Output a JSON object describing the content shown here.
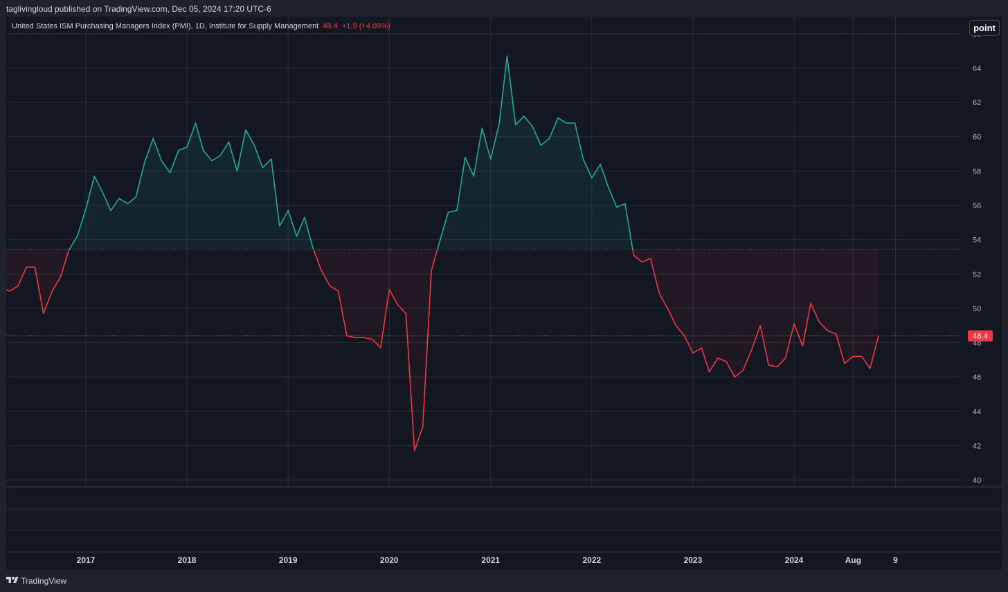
{
  "header": {
    "published_text": "taglivingloud published on TradingView.com, Dec 05, 2024 17:20 UTC-6"
  },
  "legend": {
    "symbol_text": "United States ISM Purchasing Managers Index (PMI), 1D, Institute for Supply Management",
    "last_value": "48.4",
    "change_text": "+1.9 (+4.09%)"
  },
  "toolbar": {
    "point_label": "point"
  },
  "footer": {
    "brand": "TradingView",
    "logo_icon": "tradingview-logo-icon"
  },
  "colors": {
    "background": "#131722",
    "frame": "#1e222d",
    "above_line": "#22ab94",
    "below_line": "#f23645",
    "grid": "#2a2e39",
    "axis_text": "#b2b5be"
  },
  "chart_data": {
    "type": "line",
    "style": "baseline",
    "title": "United States ISM Purchasing Managers Index (PMI)",
    "baseline_value": 53.45,
    "last_value_label": "48.4",
    "ylim": [
      39.6,
      67
    ],
    "y_ticks": [
      "40",
      "42",
      "44",
      "46",
      "48",
      "50",
      "52",
      "54",
      "56",
      "58",
      "60",
      "62",
      "64",
      "66"
    ],
    "x_ticks": [
      "2017",
      "2018",
      "2019",
      "2020",
      "2021",
      "2022",
      "2023",
      "2024",
      "Aug",
      "9"
    ],
    "x_tick_dates": [
      "2017-01-01",
      "2018-01-01",
      "2019-01-01",
      "2020-01-01",
      "2021-01-01",
      "2022-01-01",
      "2023-01-01",
      "2024-01-01",
      "2024-08-01",
      "2025-01-01"
    ],
    "grid": true,
    "x": [
      "2016-03",
      "2016-04",
      "2016-05",
      "2016-06",
      "2016-07",
      "2016-08",
      "2016-09",
      "2016-10",
      "2016-11",
      "2016-12",
      "2017-01",
      "2017-02",
      "2017-03",
      "2017-04",
      "2017-05",
      "2017-06",
      "2017-07",
      "2017-08",
      "2017-09",
      "2017-10",
      "2017-11",
      "2017-12",
      "2018-01",
      "2018-02",
      "2018-03",
      "2018-04",
      "2018-05",
      "2018-06",
      "2018-07",
      "2018-08",
      "2018-09",
      "2018-10",
      "2018-11",
      "2018-12",
      "2019-01",
      "2019-02",
      "2019-03",
      "2019-04",
      "2019-05",
      "2019-06",
      "2019-07",
      "2019-08",
      "2019-09",
      "2019-10",
      "2019-11",
      "2019-12",
      "2020-01",
      "2020-02",
      "2020-03",
      "2020-04",
      "2020-05",
      "2020-06",
      "2020-07",
      "2020-08",
      "2020-09",
      "2020-10",
      "2020-11",
      "2020-12",
      "2021-01",
      "2021-02",
      "2021-03",
      "2021-04",
      "2021-05",
      "2021-06",
      "2021-07",
      "2021-08",
      "2021-09",
      "2021-10",
      "2021-11",
      "2021-12",
      "2022-01",
      "2022-02",
      "2022-03",
      "2022-04",
      "2022-05",
      "2022-06",
      "2022-07",
      "2022-08",
      "2022-09",
      "2022-10",
      "2022-11",
      "2022-12",
      "2023-01",
      "2023-02",
      "2023-03",
      "2023-04",
      "2023-05",
      "2023-06",
      "2023-07",
      "2023-08",
      "2023-09",
      "2023-10",
      "2023-11",
      "2023-12",
      "2024-01",
      "2024-02",
      "2024-03",
      "2024-04",
      "2024-05",
      "2024-06",
      "2024-07",
      "2024-08",
      "2024-09",
      "2024-10",
      "2024-11"
    ],
    "values": [
      51.2,
      51.0,
      51.3,
      52.4,
      52.4,
      49.7,
      51.0,
      51.8,
      53.4,
      54.2,
      55.8,
      57.7,
      56.8,
      55.7,
      56.4,
      56.1,
      56.5,
      58.5,
      59.9,
      58.6,
      57.9,
      59.2,
      59.4,
      60.8,
      59.2,
      58.6,
      58.9,
      59.7,
      58.0,
      60.4,
      59.5,
      58.2,
      58.7,
      54.8,
      55.7,
      54.2,
      55.3,
      53.5,
      52.2,
      51.3,
      51.0,
      48.4,
      48.3,
      48.3,
      48.2,
      47.7,
      51.1,
      50.2,
      49.7,
      41.7,
      43.1,
      52.2,
      53.9,
      55.6,
      55.7,
      58.8,
      57.7,
      60.5,
      58.7,
      60.8,
      64.7,
      60.7,
      61.2,
      60.6,
      59.5,
      59.9,
      61.1,
      60.8,
      60.8,
      58.7,
      57.6,
      58.4,
      57.1,
      55.9,
      56.1,
      53.1,
      52.7,
      52.9,
      50.9,
      50.0,
      49.0,
      48.4,
      47.4,
      47.7,
      46.3,
      47.1,
      46.9,
      46.0,
      46.4,
      47.6,
      49.0,
      46.7,
      46.6,
      47.1,
      49.1,
      47.8,
      50.3,
      49.2,
      48.7,
      48.5,
      46.8,
      47.2,
      47.2,
      46.5,
      48.4
    ]
  }
}
